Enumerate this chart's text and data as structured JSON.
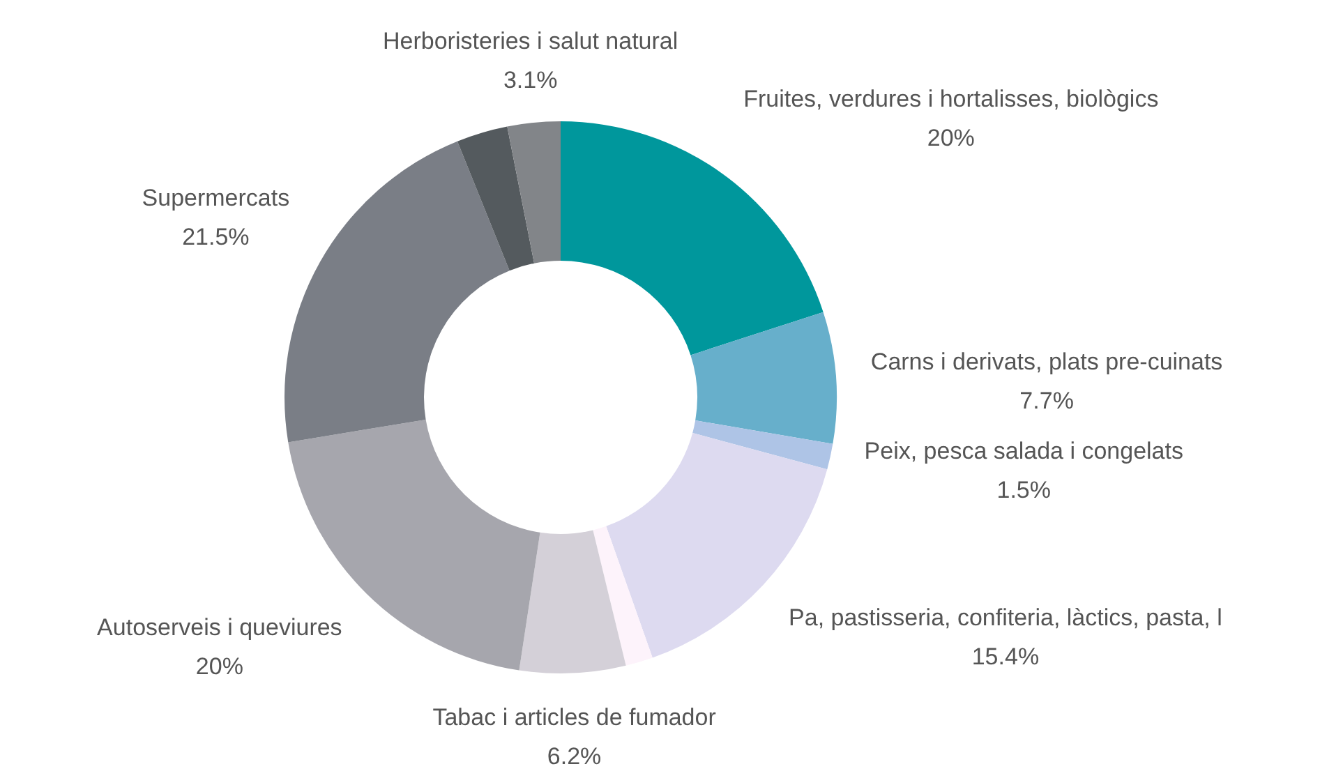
{
  "chart_data": {
    "type": "donut",
    "categories": [
      "Fruites, verdures i hortalisses, biològics",
      "Carns i derivats, plats pre-cuinats",
      "Peix, pesca salada i congelats",
      "Pa, pastisseria, confiteria, làctics,  pasta, l",
      null,
      "Tabac i articles de fumador",
      "Autoserveis i queviures",
      "Supermercats",
      null,
      "Herboristeries i salut natural"
    ],
    "values": [
      20,
      7.7,
      1.5,
      15.4,
      1.6,
      6.2,
      20,
      21.5,
      3.0,
      3.1
    ],
    "value_labels": [
      "20%",
      "7.7%",
      "1.5%",
      "15.4%",
      null,
      "6.2%",
      "20%",
      "21.5%",
      null,
      "3.1%"
    ],
    "colors": [
      "#00979c",
      "#67afcb",
      "#aec4e6",
      "#dddaf0",
      "#fdf3fb",
      "#d4d0d8",
      "#a6a6ad",
      "#7a7e86",
      "#545a5e",
      "#828589"
    ]
  }
}
